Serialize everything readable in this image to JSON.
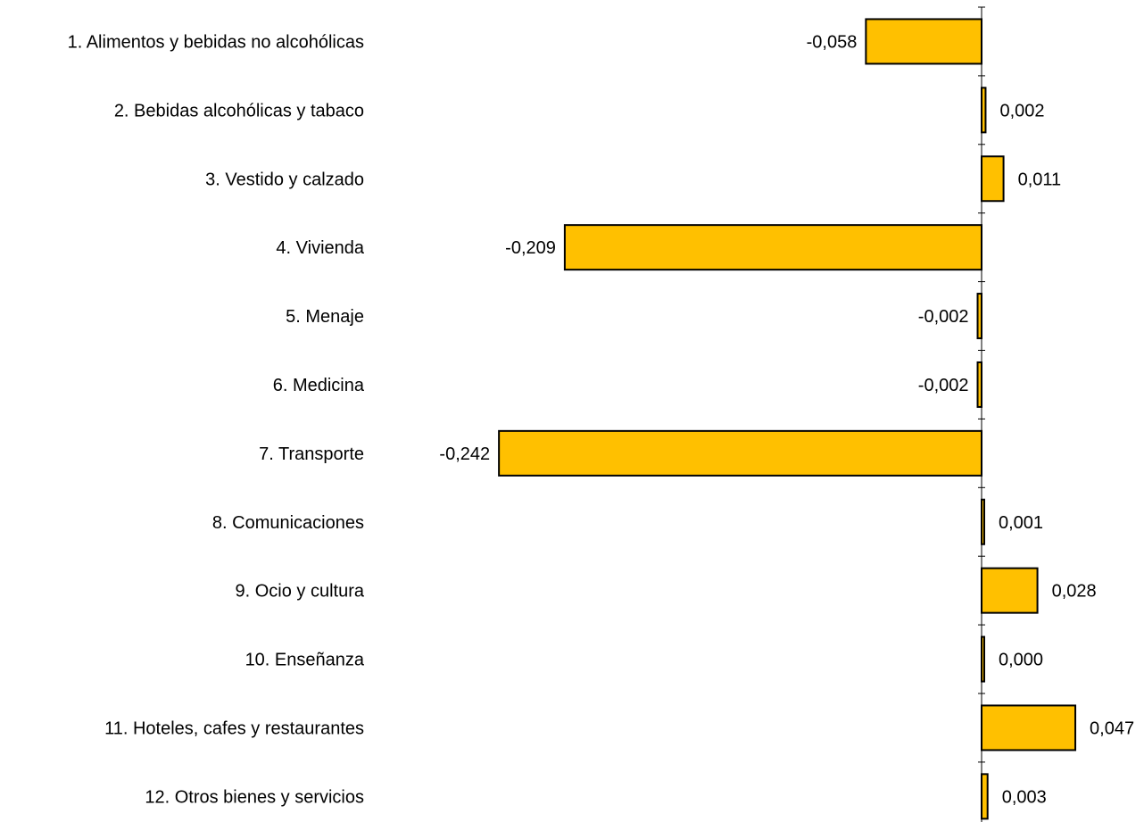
{
  "chart_data": {
    "type": "bar",
    "orientation": "horizontal",
    "categories": [
      "1. Alimentos y bebidas no alcohólicas",
      "2. Bebidas alcohólicas y tabaco",
      "3. Vestido y calzado",
      "4. Vivienda",
      "5. Menaje",
      "6. Medicina",
      "7. Transporte",
      "8. Comunicaciones",
      "9. Ocio y cultura",
      "10. Enseñanza",
      "11. Hoteles, cafes y restaurantes",
      "12. Otros bienes y servicios"
    ],
    "values": [
      -0.058,
      0.002,
      0.011,
      -0.209,
      -0.002,
      -0.002,
      -0.242,
      0.001,
      0.028,
      0.0,
      0.047,
      0.003
    ],
    "value_labels": [
      "-0,058",
      "0,002",
      "0,011",
      "-0,209",
      "-0,002",
      "-0,002",
      "-0,242",
      "0,001",
      "0,028",
      "0,000",
      "0,047",
      "0,003"
    ],
    "bar_color": "#FFC000",
    "bar_border_color": "#000000",
    "xlim": [
      -0.242,
      0.047
    ],
    "grid": false,
    "legend": "none"
  }
}
